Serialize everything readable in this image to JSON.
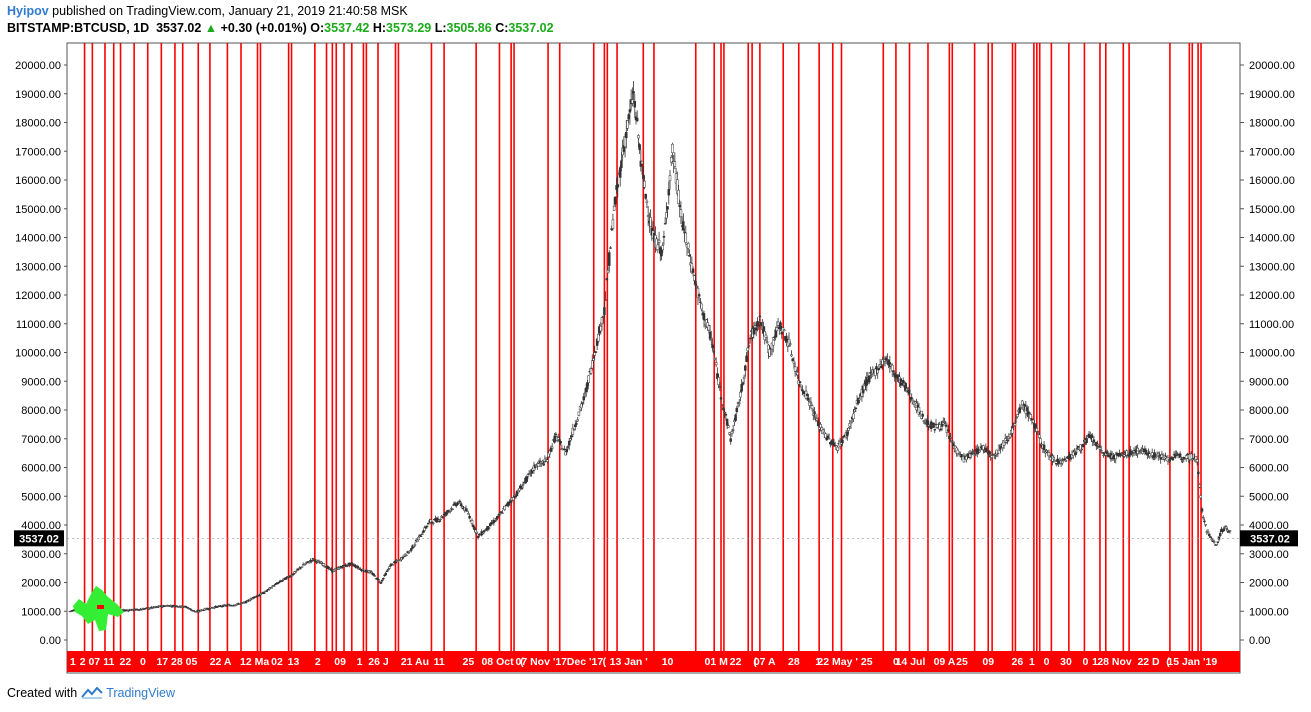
{
  "header": {
    "user": "Hyipov",
    "published_text": "published on TradingView.com, January 21, 2019 21:40:58 MSK",
    "symbol": "BITSTAMP:BTCUSD, 1D",
    "last": "3537.02",
    "change": "+0.30 (+0.01%)",
    "o_label": "O:",
    "o_value": "3537.42",
    "h_label": "H:",
    "h_value": "3573.29",
    "l_label": "L:",
    "l_value": "3505.86",
    "c_label": "C:",
    "c_value": "3537.02"
  },
  "footer": {
    "created_with": "Created with",
    "brand": "TradingView"
  },
  "colors": {
    "vline": "#ff0000",
    "candle": "#333333",
    "highlight": "#33ee33",
    "price_badge": "#000000"
  },
  "chart_data": {
    "type": "line",
    "ylim": [
      0,
      20000
    ],
    "yticks": [
      "20000.00",
      "19000.00",
      "18000.00",
      "17000.00",
      "16000.00",
      "15000.00",
      "14000.00",
      "13000.00",
      "12000.00",
      "11000.00",
      "10000.00",
      "9000.00",
      "8000.00",
      "7000.00",
      "6000.00",
      "5000.00",
      "4000.00",
      "3000.00",
      "2000.00",
      "1000.00",
      "0.00"
    ],
    "current_price_label": "3537.02",
    "current_price": 3537.02,
    "time_labels": [
      {
        "t": 0.3,
        "text": "1"
      },
      {
        "t": 1.3,
        "text": "2"
      },
      {
        "t": 2.5,
        "text": "07"
      },
      {
        "t": 4.0,
        "text": "11"
      },
      {
        "t": 5.7,
        "text": "22"
      },
      {
        "t": 7.5,
        "text": "0"
      },
      {
        "t": 9.5,
        "text": "17"
      },
      {
        "t": 11.0,
        "text": "28"
      },
      {
        "t": 12.5,
        "text": "05"
      },
      {
        "t": 15.5,
        "text": "22 A"
      },
      {
        "t": 19.0,
        "text": "12 Ma"
      },
      {
        "t": 21.3,
        "text": "02"
      },
      {
        "t": 23.0,
        "text": "13"
      },
      {
        "t": 25.5,
        "text": "2"
      },
      {
        "t": 27.8,
        "text": "09"
      },
      {
        "t": 29.8,
        "text": "1"
      },
      {
        "t": 31.3,
        "text": "26"
      },
      {
        "t": 32.5,
        "text": "J"
      },
      {
        "t": 35.5,
        "text": "21 Au"
      },
      {
        "t": 38.0,
        "text": "11"
      },
      {
        "t": 41.0,
        "text": "25"
      },
      {
        "t": 44.0,
        "text": "08 Oct"
      },
      {
        "t": 46.5,
        "text": "("
      },
      {
        "t": 48.5,
        "text": "07 Nov '17"
      },
      {
        "t": 53.0,
        "text": "Dec '17"
      },
      {
        "t": 55.0,
        "text": "("
      },
      {
        "t": 57.5,
        "text": "13 Jan '"
      },
      {
        "t": 61.5,
        "text": "10"
      },
      {
        "t": 66.5,
        "text": "01 M"
      },
      {
        "t": 68.5,
        "text": "22"
      },
      {
        "t": 70.5,
        "text": "("
      },
      {
        "t": 71.5,
        "text": "07 A"
      },
      {
        "t": 74.5,
        "text": "28"
      },
      {
        "t": 77.0,
        "text": "1"
      },
      {
        "t": 79.0,
        "text": "22 May '"
      },
      {
        "t": 82.0,
        "text": "25"
      },
      {
        "t": 85.0,
        "text": "0"
      },
      {
        "t": 86.5,
        "text": "14 Jul"
      },
      {
        "t": 90.0,
        "text": "09 A"
      },
      {
        "t": 91.8,
        "text": "25"
      },
      {
        "t": 94.5,
        "text": "09"
      },
      {
        "t": 97.5,
        "text": "26"
      },
      {
        "t": 99.0,
        "text": "1"
      },
      {
        "t": 100.5,
        "text": "0"
      },
      {
        "t": 102.5,
        "text": "30"
      },
      {
        "t": 104.5,
        "text": "0"
      },
      {
        "t": 105.5,
        "text": "1"
      },
      {
        "t": 107.5,
        "text": "28 Nov"
      },
      {
        "t": 111.0,
        "text": "22 D"
      },
      {
        "t": 113.0,
        "text": "("
      },
      {
        "t": 115.5,
        "text": "15 Jan '19"
      }
    ],
    "vertical_lines": [
      1.5,
      2.3,
      3.6,
      4.5,
      5.2,
      6.6,
      8.0,
      9.4,
      10.8,
      11.6,
      13.2,
      14.4,
      16.2,
      17.6,
      19.3,
      19.6,
      22.5,
      22.8,
      25.2,
      26.4,
      27.0,
      27.4,
      28.2,
      29.0,
      30.2,
      30.5,
      31.7,
      33.5,
      33.8,
      37.2,
      38.5,
      41.8,
      44.2,
      45.4,
      45.7,
      49.2,
      50.4,
      53.9,
      55.0,
      55.3,
      56.3,
      59.0,
      60.1,
      64.4,
      66.3,
      67.0,
      67.3,
      69.8,
      70.2,
      71.0,
      73.4,
      75.0,
      77.1,
      78.5,
      79.4,
      83.7,
      85.0,
      86.4,
      88.3,
      90.5,
      90.8,
      93.1,
      94.5,
      94.9,
      97.0,
      97.3,
      99.2,
      99.5,
      99.8,
      101.0,
      102.8,
      104.4,
      106.0,
      106.6,
      108.4,
      109.0,
      113.2,
      115.2,
      115.5,
      116.1,
      116.4
    ],
    "series": [
      {
        "values": [
          [
            0,
            1000
          ],
          [
            0.5,
            1050
          ],
          [
            1,
            980
          ],
          [
            1.5,
            900
          ],
          [
            2,
            880
          ],
          [
            2.5,
            950
          ],
          [
            3,
            990
          ],
          [
            3.5,
            1010
          ],
          [
            4,
            1000
          ],
          [
            5,
            1020
          ],
          [
            6,
            1040
          ],
          [
            7,
            1060
          ],
          [
            8,
            1100
          ],
          [
            9,
            1150
          ],
          [
            10,
            1200
          ],
          [
            11,
            1180
          ],
          [
            12,
            1150
          ],
          [
            12.5,
            1050
          ],
          [
            13,
            980
          ],
          [
            14,
            1080
          ],
          [
            15,
            1150
          ],
          [
            16,
            1200
          ],
          [
            17,
            1230
          ],
          [
            18,
            1300
          ],
          [
            19,
            1500
          ],
          [
            20,
            1650
          ],
          [
            21,
            1900
          ],
          [
            22,
            2100
          ],
          [
            23,
            2300
          ],
          [
            24,
            2600
          ],
          [
            25,
            2800
          ],
          [
            26,
            2650
          ],
          [
            27,
            2400
          ],
          [
            28,
            2550
          ],
          [
            29,
            2650
          ],
          [
            30,
            2450
          ],
          [
            31,
            2350
          ],
          [
            32,
            2000
          ],
          [
            33,
            2600
          ],
          [
            34,
            2800
          ],
          [
            35,
            3100
          ],
          [
            36,
            3600
          ],
          [
            37,
            4100
          ],
          [
            38,
            4200
          ],
          [
            39,
            4500
          ],
          [
            40,
            4800
          ],
          [
            41,
            4400
          ],
          [
            42,
            3600
          ],
          [
            43,
            3900
          ],
          [
            44,
            4250
          ],
          [
            45,
            4700
          ],
          [
            46,
            5100
          ],
          [
            47,
            5600
          ],
          [
            48,
            6100
          ],
          [
            49,
            6200
          ],
          [
            50,
            7100
          ],
          [
            51,
            6500
          ],
          [
            52,
            7500
          ],
          [
            53,
            8500
          ],
          [
            54,
            10000
          ],
          [
            55,
            11500
          ],
          [
            56,
            15000
          ],
          [
            57,
            17200
          ],
          [
            58,
            19000
          ],
          [
            59,
            16000
          ],
          [
            60,
            14000
          ],
          [
            61,
            13500
          ],
          [
            62,
            17000
          ],
          [
            63,
            14500
          ],
          [
            64,
            13000
          ],
          [
            65,
            11500
          ],
          [
            66,
            10500
          ],
          [
            67,
            8500
          ],
          [
            68,
            7000
          ],
          [
            69,
            8500
          ],
          [
            70,
            10500
          ],
          [
            71,
            11200
          ],
          [
            72,
            10000
          ],
          [
            73,
            11000
          ],
          [
            74,
            10300
          ],
          [
            75,
            9000
          ],
          [
            76,
            8400
          ],
          [
            77,
            7500
          ],
          [
            78,
            7000
          ],
          [
            79,
            6700
          ],
          [
            80,
            7200
          ],
          [
            81,
            8200
          ],
          [
            82,
            9000
          ],
          [
            83,
            9400
          ],
          [
            84,
            9800
          ],
          [
            85,
            9200
          ],
          [
            86,
            8800
          ],
          [
            87,
            8200
          ],
          [
            88,
            7600
          ],
          [
            89,
            7400
          ],
          [
            90,
            7500
          ],
          [
            91,
            6700
          ],
          [
            92,
            6300
          ],
          [
            93,
            6500
          ],
          [
            94,
            6700
          ],
          [
            95,
            6400
          ],
          [
            96,
            6800
          ],
          [
            97,
            7300
          ],
          [
            98,
            8200
          ],
          [
            99,
            7700
          ],
          [
            100,
            6800
          ],
          [
            101,
            6300
          ],
          [
            102,
            6200
          ],
          [
            103,
            6400
          ],
          [
            104,
            6700
          ],
          [
            105,
            7100
          ],
          [
            106,
            6600
          ],
          [
            107,
            6400
          ],
          [
            108,
            6400
          ],
          [
            109,
            6500
          ],
          [
            110,
            6600
          ],
          [
            111,
            6500
          ],
          [
            112,
            6400
          ],
          [
            113,
            6300
          ],
          [
            114,
            6400
          ],
          [
            115,
            6400
          ],
          [
            116,
            6300
          ],
          [
            116.5,
            4500
          ],
          [
            117,
            3800
          ],
          [
            117.5,
            3500
          ],
          [
            118,
            3300
          ],
          [
            118.5,
            3800
          ],
          [
            119,
            3900
          ],
          [
            119.5,
            3700
          ]
        ]
      }
    ]
  }
}
